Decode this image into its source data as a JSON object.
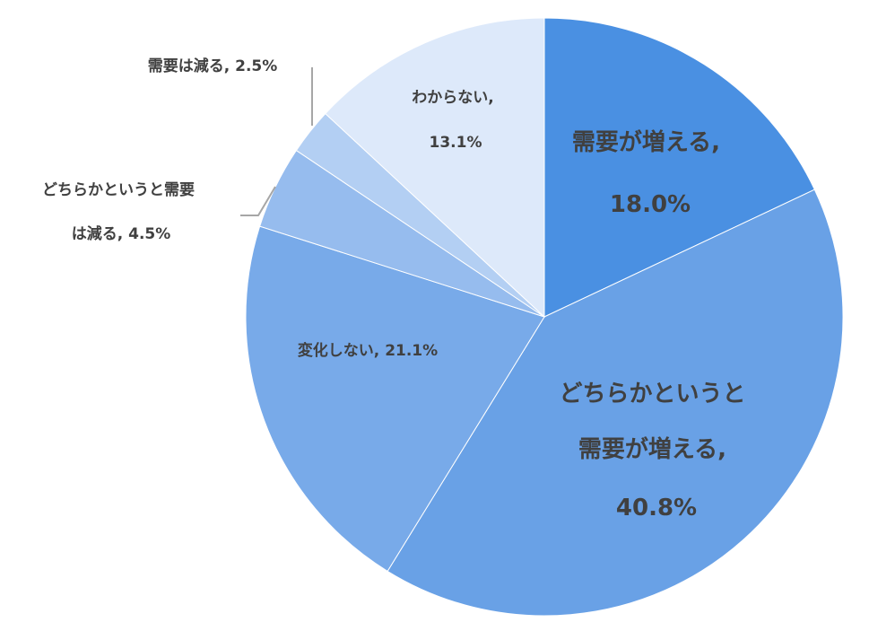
{
  "chart_data": {
    "type": "pie",
    "title": "",
    "start_angle_deg": 0,
    "direction": "clockwise",
    "slices": [
      {
        "label": "需要が増える",
        "value": 18.0,
        "value_text": "18.0%",
        "color": "#4a90e2"
      },
      {
        "label": "どちらかというと需要が増える",
        "value": 40.8,
        "value_text": "40.8%",
        "color": "#69a1e6"
      },
      {
        "label": "変化しない",
        "value": 21.1,
        "value_text": "21.1%",
        "color": "#78aae9"
      },
      {
        "label": "どちらかというと需要は減る",
        "value": 4.5,
        "value_text": "4.5%",
        "color": "#96bcee"
      },
      {
        "label": "需要は減る",
        "value": 2.5,
        "value_text": "2.5%",
        "color": "#b3cff3"
      },
      {
        "label": "わからない",
        "value": 13.1,
        "value_text": "13.1%",
        "color": "#dde9fa"
      }
    ],
    "slice_labels": [
      [
        "需要が増える,",
        "18.0%"
      ],
      [
        "どちらかというと",
        "需要が増える,",
        "40.8%"
      ],
      [
        "変化しない, 21.1%"
      ],
      [
        "どちらかというと需要",
        "は減る, 4.5%"
      ],
      [
        "需要は減る, 2.5%"
      ],
      [
        "わからない,",
        "13.1%"
      ]
    ]
  }
}
